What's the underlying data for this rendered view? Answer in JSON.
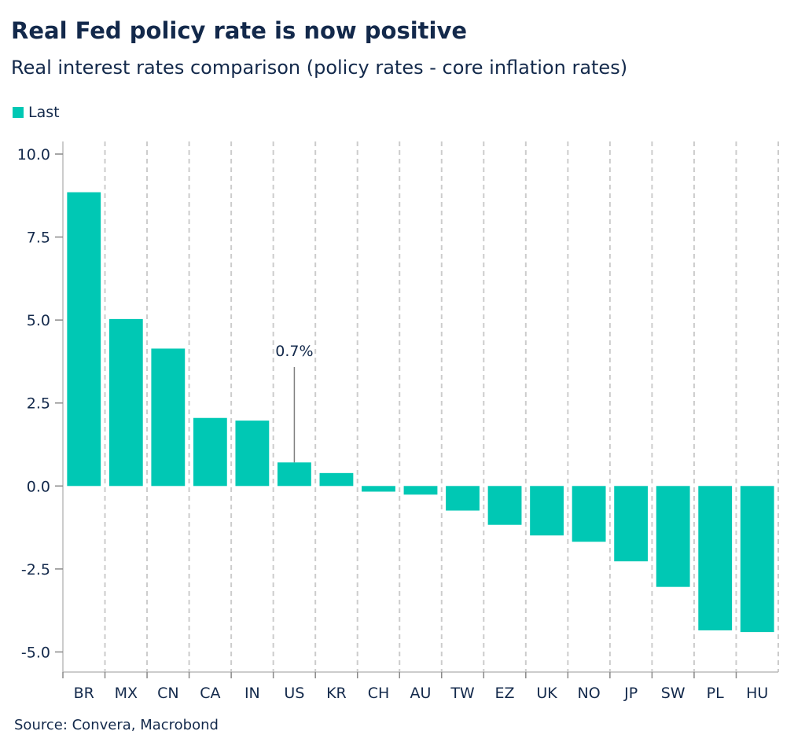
{
  "title": "Real Fed policy rate is now positive",
  "subtitle": "Real interest rates comparison (policy rates - core inflation rates)",
  "source": "Source: Convera, Macrobond",
  "colors": {
    "bar": "#00c8b4",
    "text": "#13294b",
    "grid": "#cccccc",
    "annotation_line": "#808080"
  },
  "chart_data": {
    "type": "bar",
    "categories": [
      "BR",
      "MX",
      "CN",
      "CA",
      "IN",
      "US",
      "KR",
      "CH",
      "AU",
      "TW",
      "EZ",
      "UK",
      "NO",
      "JP",
      "SW",
      "PL",
      "HU"
    ],
    "series": [
      {
        "name": "Last",
        "values": [
          8.85,
          5.03,
          4.14,
          2.05,
          1.97,
          0.71,
          0.39,
          -0.17,
          -0.26,
          -0.74,
          -1.17,
          -1.49,
          -1.68,
          -2.27,
          -3.04,
          -4.35,
          -4.4
        ]
      }
    ],
    "yticks": [
      "10.0",
      "7.5",
      "5.0",
      "2.5",
      "0.0",
      "-2.5",
      "-5.0"
    ],
    "ylim": [
      -5.0,
      10.0
    ],
    "grid": "vertical dashed",
    "legend": "top-left",
    "annotation": {
      "category": "US",
      "text": "0.7%"
    }
  }
}
